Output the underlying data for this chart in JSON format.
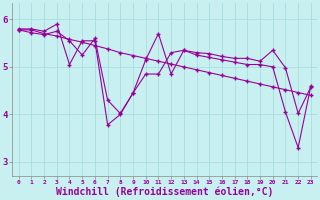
{
  "background_color": "#c8f0f0",
  "line_color": "#990099",
  "grid_color": "#a8dede",
  "xlabel": "Windchill (Refroidissement éolien,°C)",
  "xlabel_fontsize": 7,
  "yticks": [
    3,
    4,
    5,
    6
  ],
  "xtick_labels": [
    "0",
    "1",
    "2",
    "3",
    "4",
    "5",
    "6",
    "7",
    "8",
    "9",
    "10",
    "11",
    "12",
    "13",
    "14",
    "15",
    "16",
    "17",
    "18",
    "19",
    "20",
    "21",
    "22",
    "23"
  ],
  "xlim": [
    -0.5,
    23.5
  ],
  "ylim": [
    2.7,
    6.35
  ],
  "line1_x": [
    0,
    1,
    2,
    3,
    4,
    5,
    6,
    7,
    8,
    9,
    10,
    11,
    12,
    13,
    14,
    15,
    16,
    17,
    18,
    19,
    20,
    21,
    22,
    23
  ],
  "line1_y": [
    5.8,
    5.8,
    5.75,
    5.9,
    5.05,
    5.55,
    5.55,
    3.78,
    4.0,
    4.45,
    4.85,
    4.85,
    5.3,
    5.35,
    5.25,
    5.2,
    5.15,
    5.1,
    5.05,
    5.05,
    5.0,
    4.05,
    3.3,
    4.6
  ],
  "line2_x": [
    0,
    1,
    2,
    3,
    4,
    5,
    6,
    7,
    8,
    9,
    10,
    11,
    12,
    13,
    14,
    15,
    16,
    17,
    18,
    19,
    20,
    21,
    22,
    23
  ],
  "line2_y": [
    5.78,
    5.78,
    5.7,
    5.65,
    5.58,
    5.52,
    5.45,
    5.38,
    5.3,
    5.24,
    5.18,
    5.12,
    5.06,
    5.0,
    4.94,
    4.88,
    4.82,
    4.76,
    4.7,
    4.64,
    4.58,
    4.52,
    4.46,
    4.4
  ],
  "line3_x": [
    0,
    1,
    2,
    3,
    4,
    5,
    6,
    7,
    8,
    9,
    10,
    11,
    12,
    13,
    14,
    15,
    16,
    17,
    18,
    19,
    20,
    21,
    22,
    23
  ],
  "line3_y": [
    5.78,
    5.72,
    5.68,
    5.75,
    5.55,
    5.25,
    5.6,
    4.3,
    4.02,
    4.45,
    5.15,
    5.7,
    4.85,
    5.35,
    5.3,
    5.28,
    5.22,
    5.18,
    5.18,
    5.12,
    5.35,
    4.98,
    4.02,
    4.58
  ]
}
